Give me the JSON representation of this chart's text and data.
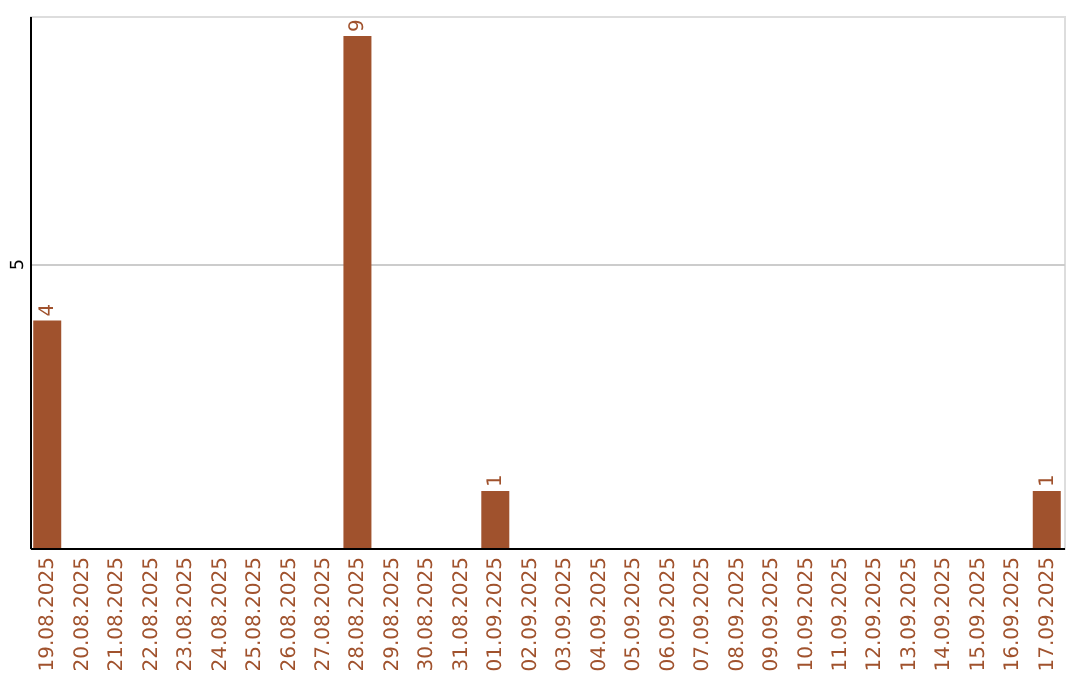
{
  "chart_data": {
    "type": "bar",
    "categories": [
      "19.08.2025",
      "20.08.2025",
      "21.08.2025",
      "22.08.2025",
      "23.08.2025",
      "24.08.2025",
      "25.08.2025",
      "26.08.2025",
      "27.08.2025",
      "28.08.2025",
      "29.08.2025",
      "30.08.2025",
      "31.08.2025",
      "01.09.2025",
      "02.09.2025",
      "03.09.2025",
      "04.09.2025",
      "05.09.2025",
      "06.09.2025",
      "07.09.2025",
      "08.09.2025",
      "09.09.2025",
      "10.09.2025",
      "11.09.2025",
      "12.09.2025",
      "13.09.2025",
      "14.09.2025",
      "15.09.2025",
      "16.09.2025",
      "17.09.2025"
    ],
    "values": [
      4,
      0,
      0,
      0,
      0,
      0,
      0,
      0,
      0,
      9,
      0,
      0,
      0,
      1,
      0,
      0,
      0,
      0,
      0,
      0,
      0,
      0,
      0,
      0,
      0,
      0,
      0,
      0,
      0,
      1
    ],
    "value_labels": [
      "4",
      null,
      null,
      null,
      null,
      null,
      null,
      null,
      null,
      "9",
      null,
      null,
      null,
      "1",
      null,
      null,
      null,
      null,
      null,
      null,
      null,
      null,
      null,
      null,
      null,
      null,
      null,
      null,
      null,
      "1"
    ],
    "color": "#a0522d",
    "ylim": [
      0,
      9.35
    ],
    "yticks": [
      5
    ],
    "grid": "y"
  }
}
